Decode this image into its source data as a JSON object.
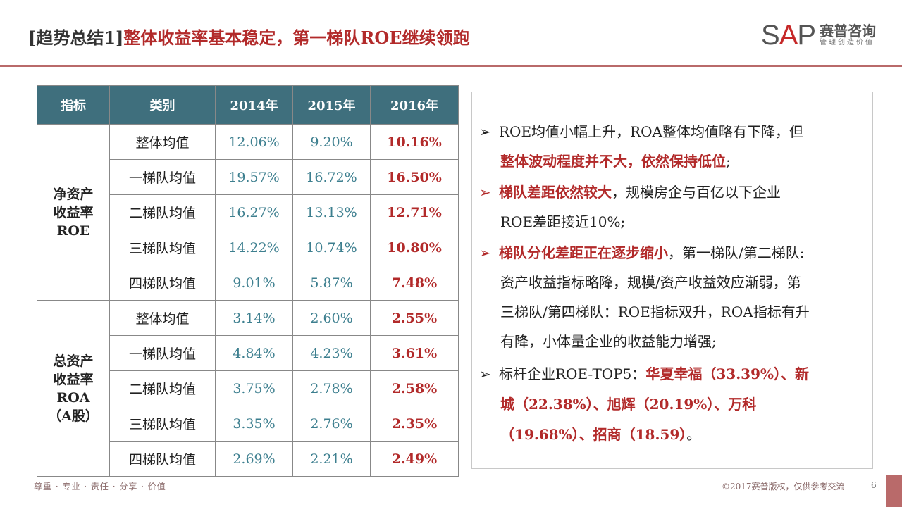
{
  "header": {
    "title_prefix": "[趋势总结1]",
    "title_main": "整体收益率基本稳定，第一梯队ROE继续领跑"
  },
  "logo": {
    "brand_left": "S",
    "brand_accent": "A",
    "brand_right": "P",
    "cn_name": "赛普咨询",
    "cn_tagline": "管理创造价值"
  },
  "table": {
    "headers": [
      "指标",
      "类别",
      "2014年",
      "2015年",
      "2016年"
    ],
    "groups": [
      {
        "label_lines": [
          "净资产",
          "收益率",
          "ROE"
        ],
        "rows": [
          {
            "category": "整体均值",
            "v2014": "12.06%",
            "v2015": "9.20%",
            "v2016": "10.16%"
          },
          {
            "category": "一梯队均值",
            "v2014": "19.57%",
            "v2015": "16.72%",
            "v2016": "16.50%"
          },
          {
            "category": "二梯队均值",
            "v2014": "16.27%",
            "v2015": "13.13%",
            "v2016": "12.71%"
          },
          {
            "category": "三梯队均值",
            "v2014": "14.22%",
            "v2015": "10.74%",
            "v2016": "10.80%"
          },
          {
            "category": "四梯队均值",
            "v2014": "9.01%",
            "v2015": "5.87%",
            "v2016": "7.48%"
          }
        ]
      },
      {
        "label_lines": [
          "总资产",
          "收益率",
          "ROA",
          "（A股）"
        ],
        "rows": [
          {
            "category": "整体均值",
            "v2014": "3.14%",
            "v2015": "2.60%",
            "v2016": "2.55%"
          },
          {
            "category": "一梯队均值",
            "v2014": "4.84%",
            "v2015": "4.23%",
            "v2016": "3.61%"
          },
          {
            "category": "二梯队均值",
            "v2014": "3.75%",
            "v2015": "2.78%",
            "v2016": "2.58%"
          },
          {
            "category": "三梯队均值",
            "v2014": "3.35%",
            "v2015": "2.76%",
            "v2016": "2.35%"
          },
          {
            "category": "四梯队均值",
            "v2014": "2.69%",
            "v2015": "2.21%",
            "v2016": "2.49%"
          }
        ]
      }
    ]
  },
  "summary": {
    "marker": "➢",
    "b1_l1": "ROE均值小幅上升，ROA整体均值略有下降，但",
    "b1_l2_red": "整体波动程度并不大，依然保持低位",
    "b1_l2_tail": ";",
    "b2_l1_red": "梯队差距依然较大",
    "b2_l1_tail": "，规模房企与百亿以下企业",
    "b2_l2": "ROE差距接近10%;",
    "b3_l1_red": "梯队分化差距正在逐步缩小",
    "b3_l1_tail": "，第一梯队/第二梯队:",
    "b3_l2": "资产收益指标略降，规模/资产收益效应渐弱，第",
    "b3_l3": "三梯队/第四梯队：ROE指标双升，ROA指标有升",
    "b3_l4": "有降，小体量企业的收益能力增强;",
    "b4_l1_head": "标杆企业ROE-TOP5：",
    "b4_l1_red": "华夏幸福（33.39%）、新",
    "b4_l2_red": "城（22.38%）、旭辉（20.19%）、万科",
    "b4_l3_red": "（19.68%）、招商（18.59）",
    "b4_l3_tail": "。"
  },
  "footer": {
    "left": "尊重 · 专业 · 责任 · 分享 · 价值",
    "right": "©2017赛普版权，仅供参考交流",
    "page": "6"
  }
}
